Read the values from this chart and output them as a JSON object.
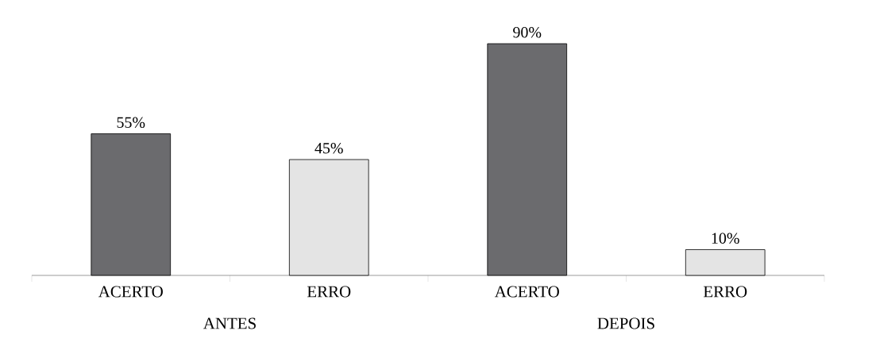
{
  "chart_data": {
    "type": "bar",
    "categories": [
      "ACERTO",
      "ERRO",
      "ACERTO",
      "ERRO"
    ],
    "values": [
      55,
      45,
      90,
      10
    ],
    "colors": [
      "#6b6b6e",
      "#e4e4e4",
      "#6b6b6e",
      "#e4e4e4"
    ],
    "value_labels": [
      "55%",
      "45%",
      "90%",
      "10%"
    ],
    "annotations": [
      "ANTES",
      "DEPOIS"
    ]
  }
}
